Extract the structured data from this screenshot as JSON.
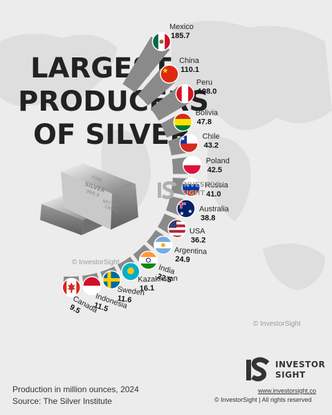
{
  "title_lines": [
    "LARGEST",
    "PRODUCERS",
    "OF SILVER"
  ],
  "chart_data": {
    "type": "bar",
    "title": "LARGEST PRODUCERS OF SILVER",
    "unit": "million ounces",
    "categories": [
      "Mexico",
      "China",
      "Peru",
      "Bolivia",
      "Chile",
      "Poland",
      "Russia",
      "Australia",
      "USA",
      "Argentina",
      "India",
      "Kazakhstan",
      "Sweden",
      "Indonesia",
      "Canada"
    ],
    "values": [
      185.7,
      110.1,
      108.0,
      47.8,
      43.2,
      42.5,
      41.0,
      38.8,
      36.2,
      24.9,
      22.5,
      16.1,
      11.6,
      11.5,
      9.5
    ],
    "value_labels": [
      "185.7",
      "110.1",
      "108.0",
      "47.8",
      "43.2",
      "42.5",
      "41.0",
      "38.8",
      "36.2",
      "24.9",
      "22.5",
      "16.1",
      "11.6",
      "11.5",
      "9.5"
    ],
    "year": "2024"
  },
  "bar_color": "#8a8a8a",
  "ingot": {
    "line1": "FINE",
    "line2": "SILVER",
    "line3": "999.9",
    "line4": "NET WT",
    "line5": "1000 g"
  },
  "watermarks": {
    "left": "© InvestorSight",
    "right": "© InvestorSight",
    "mid_brand_line1": "INVESTOR",
    "mid_brand_line2": "SIGHT"
  },
  "footer": {
    "note": "Production in million ounces, 2024",
    "source": "Source: The Silver Institute"
  },
  "brand": {
    "name_line1": "INVESTOR",
    "name_line2": "SIGHT",
    "site": "www.investorsight.co",
    "copyright": "© InvestorSight |  All rights reserved"
  }
}
